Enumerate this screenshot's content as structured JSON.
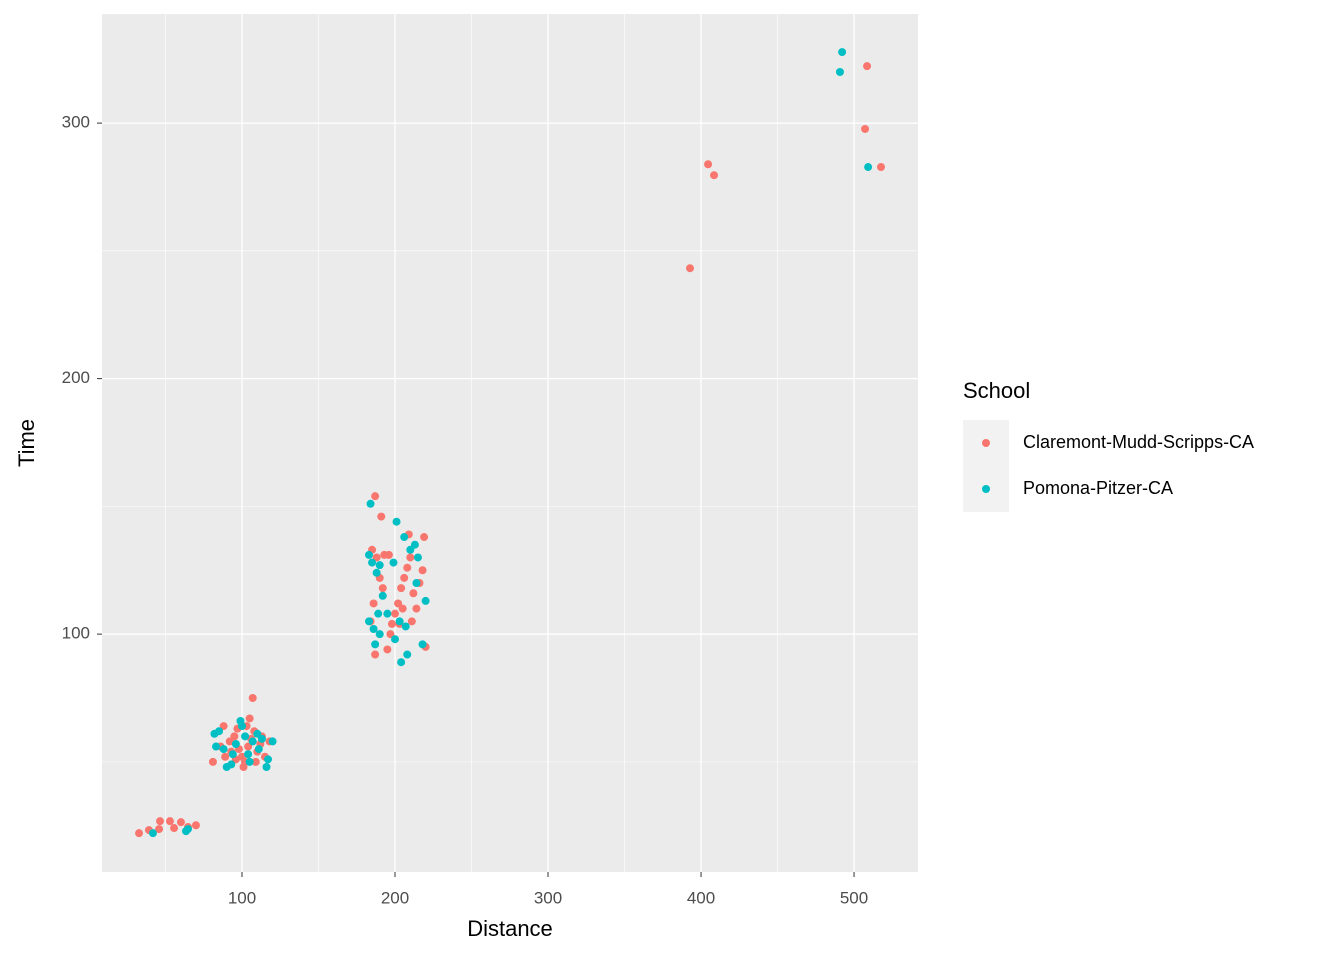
{
  "chart_data": {
    "type": "scatter",
    "x_label": "Distance",
    "y_label": "Time",
    "legend_title": "School",
    "legend_position": "right",
    "xlim": [
      8.5,
      541.8
    ],
    "ylim": [
      6.9,
      342.7
    ],
    "xticks": [
      100,
      200,
      300,
      400,
      500
    ],
    "yticks": [
      100,
      200,
      300
    ],
    "grid": true,
    "minor_grid": true,
    "series": [
      {
        "name": "Claremont-Mudd-Scripps-CA",
        "color": "#F8766D",
        "x": [
          32.7,
          39.2,
          45.8,
          46.4,
          52.9,
          55.6,
          60.1,
          64.7,
          69.9,
          107,
          88,
          105,
          81,
          89,
          92,
          95,
          98,
          100,
          102,
          104,
          106,
          108,
          110,
          112,
          115,
          118,
          93,
          97,
          101,
          109,
          113,
          86,
          96,
          103,
          187,
          191,
          185,
          188,
          190,
          192,
          186,
          184,
          195,
          197,
          200,
          202,
          204,
          206,
          208,
          210,
          212,
          214,
          216,
          218,
          219,
          220,
          209,
          196,
          198,
          203,
          193,
          187,
          205,
          211,
          392.8,
          404.6,
          408.5,
          508.5,
          507.2,
          517.6
        ],
        "y": [
          22.1,
          23.3,
          23.7,
          26.8,
          26.8,
          24.1,
          26.4,
          24.5,
          25.2,
          75,
          64,
          67,
          50,
          52,
          58,
          60,
          55,
          52,
          50,
          56,
          59,
          62,
          54,
          57,
          52,
          58,
          54,
          63,
          48,
          50,
          60,
          56,
          51,
          64,
          154,
          146,
          133,
          130,
          122,
          118,
          112,
          105,
          94,
          100,
          108,
          112,
          118,
          122,
          126,
          130,
          116,
          110,
          120,
          125,
          138,
          95,
          139,
          131,
          104,
          104,
          131,
          92,
          110,
          105,
          243.2,
          283.9,
          279.6,
          322.3,
          297.7,
          282.8
        ]
      },
      {
        "name": "Pomona-Pitzer-CA",
        "color": "#00BFC4",
        "x": [
          41.8,
          63.4,
          64.7,
          82,
          85,
          88,
          90,
          93,
          96,
          99,
          100,
          102,
          104,
          107,
          110,
          113,
          116,
          117,
          120,
          83,
          94,
          111,
          105,
          184,
          201,
          183,
          185,
          188,
          190,
          192,
          189,
          186,
          183,
          187,
          204,
          208,
          200,
          199,
          206,
          210,
          213,
          215,
          218,
          220,
          203,
          207,
          195,
          190,
          214,
          492.2,
          490.8,
          509.2
        ],
        "y": [
          22.1,
          22.9,
          23.7,
          61,
          62,
          55,
          48,
          49,
          57,
          66,
          64,
          60,
          53,
          58,
          61,
          59,
          48,
          51,
          58,
          56,
          53,
          55,
          50,
          151,
          144,
          131,
          128,
          124,
          127,
          115,
          108,
          102,
          105,
          96,
          89,
          92,
          98,
          128,
          138,
          133,
          135,
          130,
          96,
          113,
          105,
          103,
          108,
          100,
          120,
          327.8,
          320.0,
          282.8
        ]
      }
    ]
  }
}
